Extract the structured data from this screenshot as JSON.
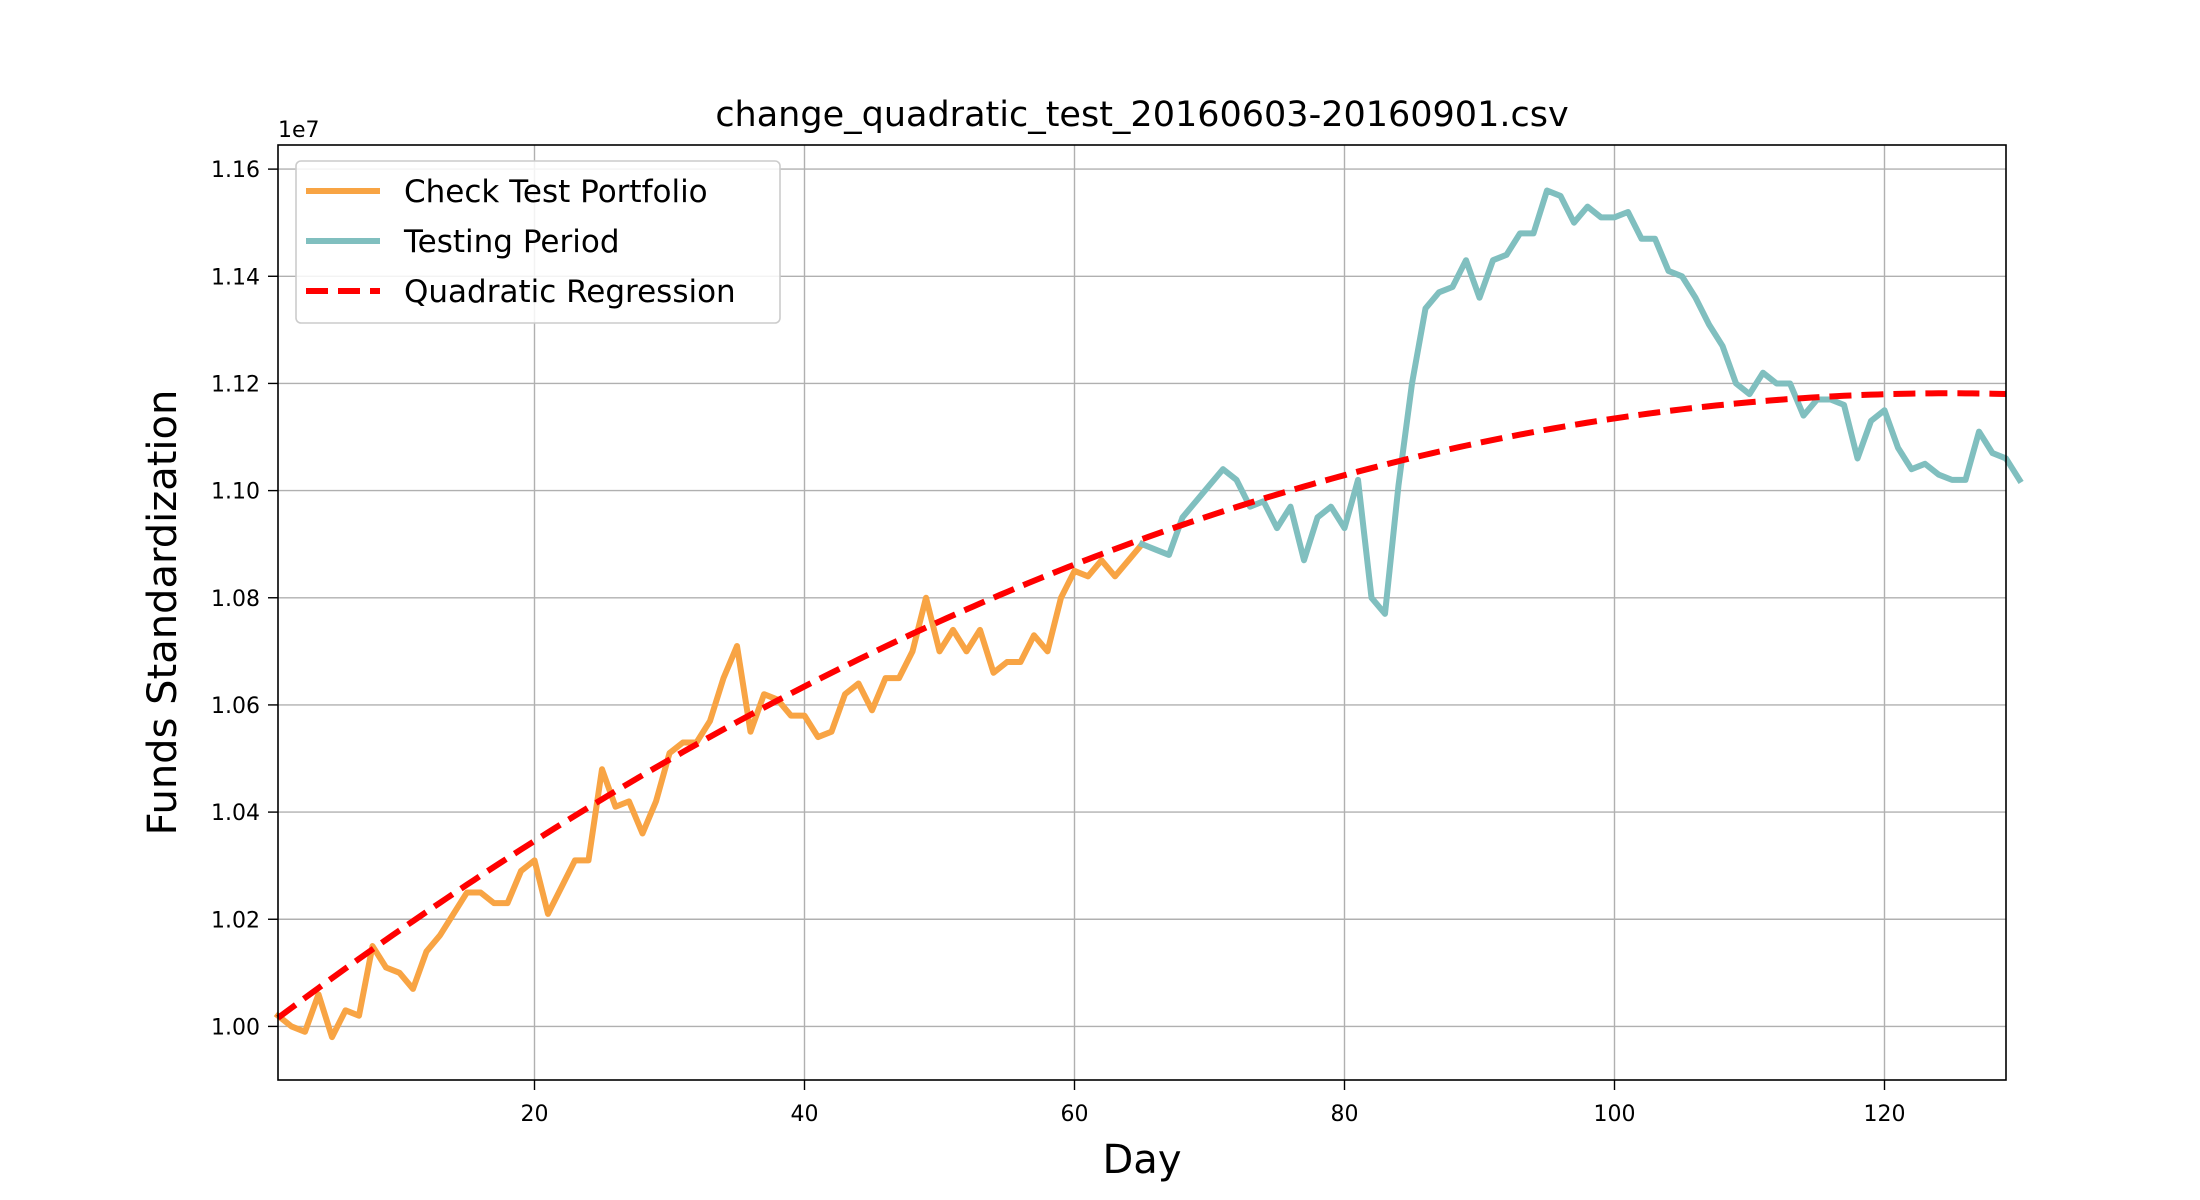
{
  "chart_data": {
    "type": "line",
    "title": "change_quadratic_test_20160603-20160901.csv",
    "xlabel": "Day",
    "ylabel": "Funds Standardization",
    "y_offset_label": "1e7",
    "xlim": [
      1,
      129
    ],
    "ylim": [
      0.99,
      1.1645
    ],
    "x_ticks": [
      20,
      40,
      60,
      80,
      100,
      120
    ],
    "x_tick_labels": [
      "20",
      "40",
      "60",
      "80",
      "100",
      "120"
    ],
    "y_ticks": [
      1.0,
      1.02,
      1.04,
      1.06,
      1.08,
      1.1,
      1.12,
      1.14,
      1.16
    ],
    "y_tick_labels": [
      "1.00",
      "1.02",
      "1.04",
      "1.06",
      "1.08",
      "1.10",
      "1.12",
      "1.14",
      "1.16"
    ],
    "grid": true,
    "legend_position": "top-left",
    "series": [
      {
        "name": "Check Test Portfolio",
        "color": "#f8a444",
        "style": "solid",
        "x_start": 1,
        "values": [
          1.002,
          1.0,
          0.999,
          1.006,
          0.998,
          1.003,
          1.002,
          1.015,
          1.011,
          1.01,
          1.007,
          1.014,
          1.017,
          1.021,
          1.025,
          1.025,
          1.023,
          1.023,
          1.029,
          1.031,
          1.021,
          1.026,
          1.031,
          1.031,
          1.048,
          1.041,
          1.042,
          1.036,
          1.042,
          1.051,
          1.053,
          1.053,
          1.057,
          1.065,
          1.071,
          1.055,
          1.062,
          1.061,
          1.058,
          1.058,
          1.054,
          1.055,
          1.062,
          1.064,
          1.059,
          1.065,
          1.065,
          1.07,
          1.08,
          1.07,
          1.074,
          1.07,
          1.074,
          1.066,
          1.068,
          1.068,
          1.073,
          1.07,
          1.08,
          1.085,
          1.084,
          1.087,
          1.084,
          1.087,
          1.09
        ]
      },
      {
        "name": "Testing Period",
        "color": "#80bfbf",
        "style": "solid",
        "x_start": 65,
        "values": [
          1.09,
          1.089,
          1.088,
          1.095,
          1.098,
          1.101,
          1.104,
          1.102,
          1.097,
          1.098,
          1.093,
          1.097,
          1.087,
          1.095,
          1.097,
          1.093,
          1.102,
          1.08,
          1.077,
          1.101,
          1.12,
          1.134,
          1.137,
          1.138,
          1.143,
          1.136,
          1.143,
          1.144,
          1.148,
          1.148,
          1.156,
          1.155,
          1.15,
          1.153,
          1.151,
          1.151,
          1.152,
          1.147,
          1.147,
          1.141,
          1.14,
          1.136,
          1.131,
          1.127,
          1.12,
          1.118,
          1.122,
          1.12,
          1.12,
          1.114,
          1.117,
          1.117,
          1.116,
          1.106,
          1.113,
          1.115,
          1.108,
          1.104,
          1.105,
          1.103,
          1.102,
          1.102,
          1.111,
          1.107,
          1.106,
          1.102
        ]
      },
      {
        "name": "Quadratic Regression",
        "color": "#ff0000",
        "style": "dashed",
        "formula": "y = 1.00159 + 0.0018825*(x-1) - 0.0000076*(x-1)^2",
        "coefficients": [
          1.00159,
          0.0018825,
          -7.6e-06
        ],
        "x_range": [
          1,
          129
        ]
      }
    ]
  }
}
